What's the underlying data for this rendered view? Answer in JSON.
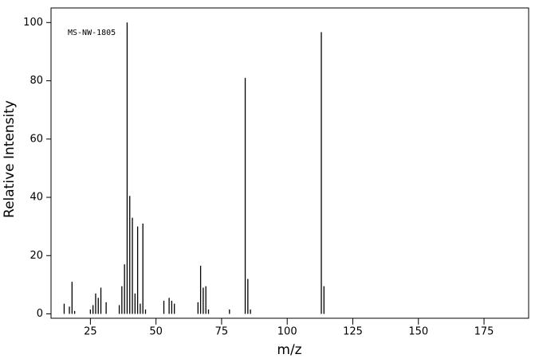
{
  "chart_data": {
    "type": "stem",
    "annotation": "MS-NW-1805",
    "x_label": "m/z",
    "y_label": "Relative Intensity",
    "color": "#000000",
    "xlim": [
      10,
      192
    ],
    "ylim": [
      -1.5,
      105
    ],
    "xticks": [
      25,
      50,
      75,
      100,
      125,
      150,
      175
    ],
    "yticks": [
      0,
      20,
      40,
      60,
      80,
      100
    ],
    "x": [
      15,
      17,
      18,
      19,
      25,
      26,
      27,
      28,
      29,
      31,
      36,
      37,
      38,
      39,
      40,
      41,
      42,
      43,
      44,
      45,
      46,
      53,
      55,
      56,
      57,
      66,
      67,
      68,
      69,
      70,
      78,
      84,
      85,
      86,
      113,
      114
    ],
    "values": [
      3.5,
      2.5,
      11,
      1,
      1.5,
      3,
      7,
      5.5,
      9,
      4,
      3,
      9.5,
      17,
      100,
      40.5,
      33,
      7,
      30,
      3.5,
      31,
      1.5,
      4.5,
      5.5,
      4.5,
      3.5,
      4,
      16.5,
      9,
      9.5,
      1.5,
      1.5,
      81,
      12,
      1.5,
      96.7,
      9.5
    ]
  }
}
